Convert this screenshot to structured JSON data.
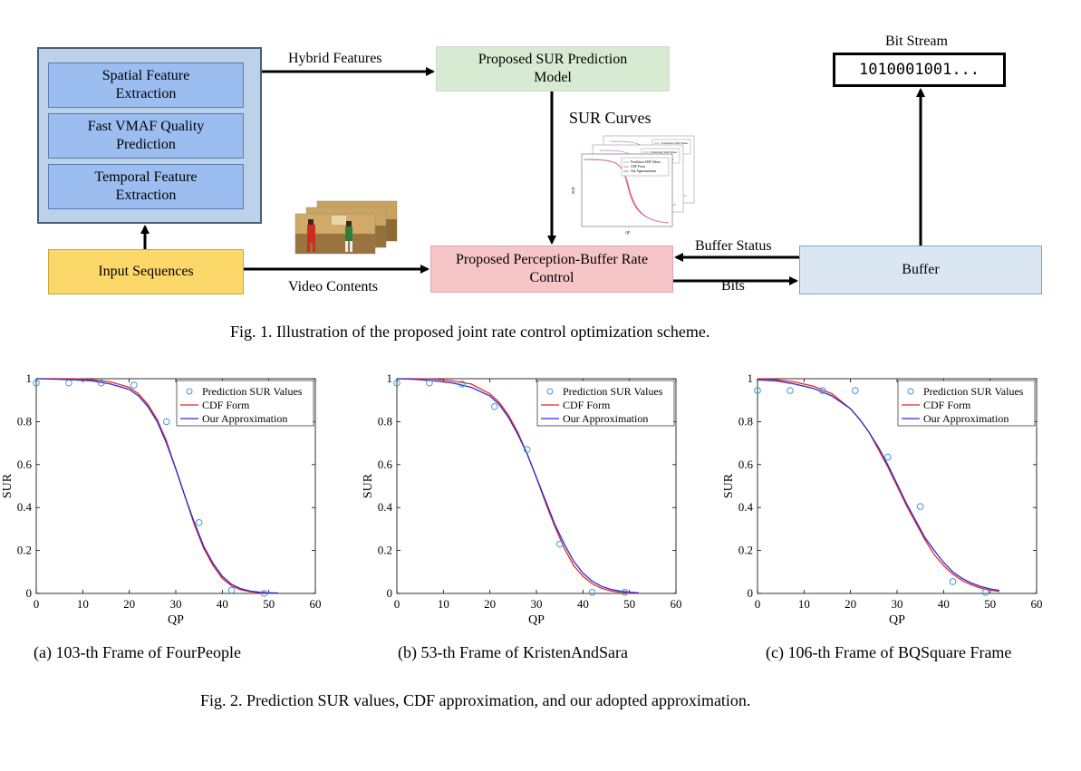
{
  "figure1": {
    "feature_blocks": [
      "Spatial Feature\nExtraction",
      "Fast VMAF Quality\nPrediction",
      "Temporal Feature\nExtraction"
    ],
    "input_sequences": "Input Sequences",
    "hybrid_features": "Hybrid Features",
    "prediction_model": "Proposed SUR Prediction\nModel",
    "sur_curves": "SUR Curves",
    "rate_control": "Proposed Perception-Buffer Rate\nControl",
    "video_contents": "Video Contents",
    "buffer_status": "Buffer Status",
    "bits": "Bits",
    "buffer": "Buffer",
    "bit_stream_label": "Bit Stream",
    "bit_stream_value": "1010001001...",
    "thumb_legend": [
      "Prediction SUR Values",
      "CDF Form",
      "Our Approximation"
    ],
    "thumb_xlabel": "QP",
    "thumb_ylabel": "SUR",
    "caption": "Fig. 1.   Illustration of the proposed joint rate control optimization scheme."
  },
  "figure2": {
    "caption": "Fig. 2.   Prediction SUR values, CDF approximation, and our adopted approximation."
  },
  "chart_data": [
    {
      "type": "line",
      "caption": "(a)  103-th Frame of FourPeople",
      "xlabel": "QP",
      "ylabel": "SUR",
      "xlim": [
        0,
        60
      ],
      "ylim": [
        0,
        1
      ],
      "xticks": [
        0,
        10,
        20,
        30,
        40,
        50,
        60
      ],
      "yticks": [
        0,
        0.2,
        0.4,
        0.6,
        0.8,
        1
      ],
      "legend_position": "top-right",
      "series": [
        {
          "name": "Prediction SUR Values",
          "kind": "markers",
          "color": "#3a9ad9",
          "x": [
            0,
            7,
            14,
            21,
            28,
            35,
            42,
            49
          ],
          "y": [
            0.98,
            0.98,
            0.98,
            0.97,
            0.8,
            0.33,
            0.015,
            0.0
          ]
        },
        {
          "name": "CDF Form",
          "kind": "line",
          "color": "#e8251f",
          "x": [
            0,
            4,
            8,
            12,
            16,
            20,
            22,
            24,
            26,
            28,
            30,
            32,
            34,
            36,
            38,
            40,
            42,
            44,
            46,
            48,
            50,
            52
          ],
          "y": [
            1.0,
            1.0,
            1.0,
            0.995,
            0.985,
            0.96,
            0.93,
            0.88,
            0.81,
            0.71,
            0.58,
            0.45,
            0.32,
            0.21,
            0.13,
            0.07,
            0.035,
            0.017,
            0.008,
            0.004,
            0.002,
            0.001
          ]
        },
        {
          "name": "Our Approximation",
          "kind": "line",
          "color": "#2a2ad6",
          "x": [
            0,
            4,
            8,
            12,
            16,
            20,
            22,
            24,
            26,
            28,
            30,
            32,
            34,
            36,
            38,
            40,
            42,
            44,
            46,
            48,
            50,
            52
          ],
          "y": [
            1.0,
            0.998,
            0.995,
            0.99,
            0.975,
            0.95,
            0.92,
            0.87,
            0.8,
            0.7,
            0.58,
            0.45,
            0.33,
            0.22,
            0.14,
            0.08,
            0.042,
            0.022,
            0.011,
            0.006,
            0.003,
            0.002
          ]
        }
      ]
    },
    {
      "type": "line",
      "caption": "(b)  53-th Frame of KristenAndSara",
      "xlabel": "QP",
      "ylabel": "SUR",
      "xlim": [
        0,
        60
      ],
      "ylim": [
        0,
        1
      ],
      "xticks": [
        0,
        10,
        20,
        30,
        40,
        50,
        60
      ],
      "yticks": [
        0,
        0.2,
        0.4,
        0.6,
        0.8,
        1
      ],
      "legend_position": "top-right",
      "series": [
        {
          "name": "Prediction SUR Values",
          "kind": "markers",
          "color": "#3a9ad9",
          "x": [
            0,
            7,
            14,
            21,
            28,
            35,
            42,
            49
          ],
          "y": [
            0.98,
            0.98,
            0.975,
            0.87,
            0.67,
            0.23,
            0.005,
            0.005
          ]
        },
        {
          "name": "CDF Form",
          "kind": "line",
          "color": "#e8251f",
          "x": [
            0,
            4,
            8,
            12,
            16,
            20,
            22,
            24,
            26,
            28,
            30,
            32,
            34,
            36,
            38,
            40,
            42,
            44,
            46,
            48,
            50,
            52
          ],
          "y": [
            1.0,
            1.0,
            0.998,
            0.99,
            0.975,
            0.93,
            0.89,
            0.83,
            0.75,
            0.65,
            0.54,
            0.42,
            0.31,
            0.21,
            0.13,
            0.08,
            0.045,
            0.024,
            0.012,
            0.006,
            0.003,
            0.0015
          ]
        },
        {
          "name": "Our Approximation",
          "kind": "line",
          "color": "#2a2ad6",
          "x": [
            0,
            4,
            8,
            12,
            16,
            20,
            22,
            24,
            26,
            28,
            30,
            32,
            34,
            36,
            38,
            40,
            42,
            44,
            46,
            48,
            50,
            52
          ],
          "y": [
            1.0,
            0.997,
            0.99,
            0.98,
            0.96,
            0.92,
            0.88,
            0.82,
            0.74,
            0.65,
            0.54,
            0.43,
            0.32,
            0.23,
            0.15,
            0.095,
            0.057,
            0.033,
            0.019,
            0.011,
            0.006,
            0.003
          ]
        }
      ]
    },
    {
      "type": "line",
      "caption": "(c)  106-th Frame of BQSquare Frame",
      "xlabel": "QP",
      "ylabel": "SUR",
      "xlim": [
        0,
        60
      ],
      "ylim": [
        0,
        1
      ],
      "xticks": [
        0,
        10,
        20,
        30,
        40,
        50,
        60
      ],
      "yticks": [
        0,
        0.2,
        0.4,
        0.6,
        0.8,
        1
      ],
      "legend_position": "top-right",
      "series": [
        {
          "name": "Prediction SUR Values",
          "kind": "markers",
          "color": "#3a9ad9",
          "x": [
            0,
            7,
            14,
            21,
            28,
            35,
            42,
            49
          ],
          "y": [
            0.945,
            0.945,
            0.945,
            0.945,
            0.635,
            0.405,
            0.055,
            0.005
          ]
        },
        {
          "name": "CDF Form",
          "kind": "line",
          "color": "#e8251f",
          "x": [
            0,
            4,
            8,
            12,
            16,
            20,
            22,
            24,
            26,
            28,
            30,
            32,
            34,
            36,
            38,
            40,
            42,
            44,
            46,
            48,
            50,
            52
          ],
          "y": [
            1.0,
            0.995,
            0.985,
            0.965,
            0.93,
            0.86,
            0.81,
            0.75,
            0.67,
            0.59,
            0.5,
            0.41,
            0.33,
            0.25,
            0.18,
            0.13,
            0.09,
            0.06,
            0.04,
            0.025,
            0.015,
            0.009
          ]
        },
        {
          "name": "Our Approximation",
          "kind": "line",
          "color": "#2a2ad6",
          "x": [
            0,
            4,
            8,
            12,
            16,
            20,
            22,
            24,
            26,
            28,
            30,
            32,
            34,
            36,
            38,
            40,
            42,
            44,
            46,
            48,
            50,
            52
          ],
          "y": [
            0.995,
            0.99,
            0.975,
            0.955,
            0.92,
            0.86,
            0.81,
            0.75,
            0.68,
            0.6,
            0.51,
            0.42,
            0.34,
            0.26,
            0.2,
            0.145,
            0.1,
            0.07,
            0.048,
            0.032,
            0.021,
            0.014
          ]
        }
      ]
    }
  ]
}
